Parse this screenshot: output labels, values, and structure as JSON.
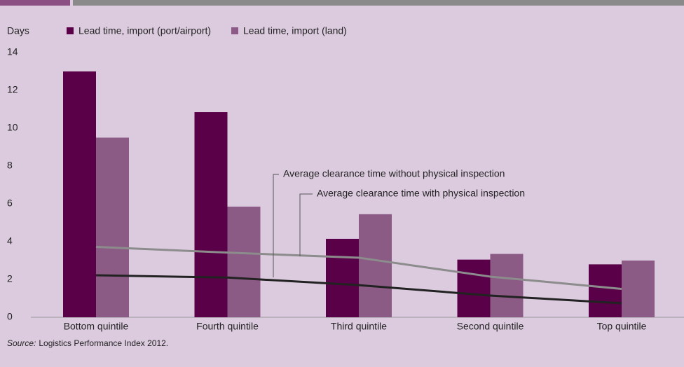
{
  "chart_data": {
    "type": "bar",
    "y_label": "Days",
    "categories": [
      "Bottom quintile",
      "Fourth quintile",
      "Third quintile",
      "Second quintile",
      "Top quintile"
    ],
    "series": [
      {
        "name": "Lead time, import (port/airport)",
        "color": "#5a0048",
        "values": [
          13,
          10.85,
          4.15,
          3.05,
          2.8
        ]
      },
      {
        "name": "Lead time, import (land)",
        "color": "#8b5a85",
        "values": [
          9.5,
          5.85,
          5.45,
          3.35,
          3.0
        ]
      }
    ],
    "lines": [
      {
        "name": "Average clearance time without physical inspection",
        "color": "#222222",
        "values": [
          2.22,
          2.1,
          1.7,
          1.15,
          0.74
        ]
      },
      {
        "name": "Average clearance time with physical inspection",
        "color": "#8c8c8c",
        "values": [
          3.72,
          3.42,
          3.15,
          2.15,
          1.5
        ]
      }
    ],
    "ylim": [
      0,
      14
    ],
    "yticks": [
      0,
      2,
      4,
      6,
      8,
      10,
      12,
      14
    ],
    "source_label": "Source:",
    "source": "Logistics Performance Index 2012."
  }
}
